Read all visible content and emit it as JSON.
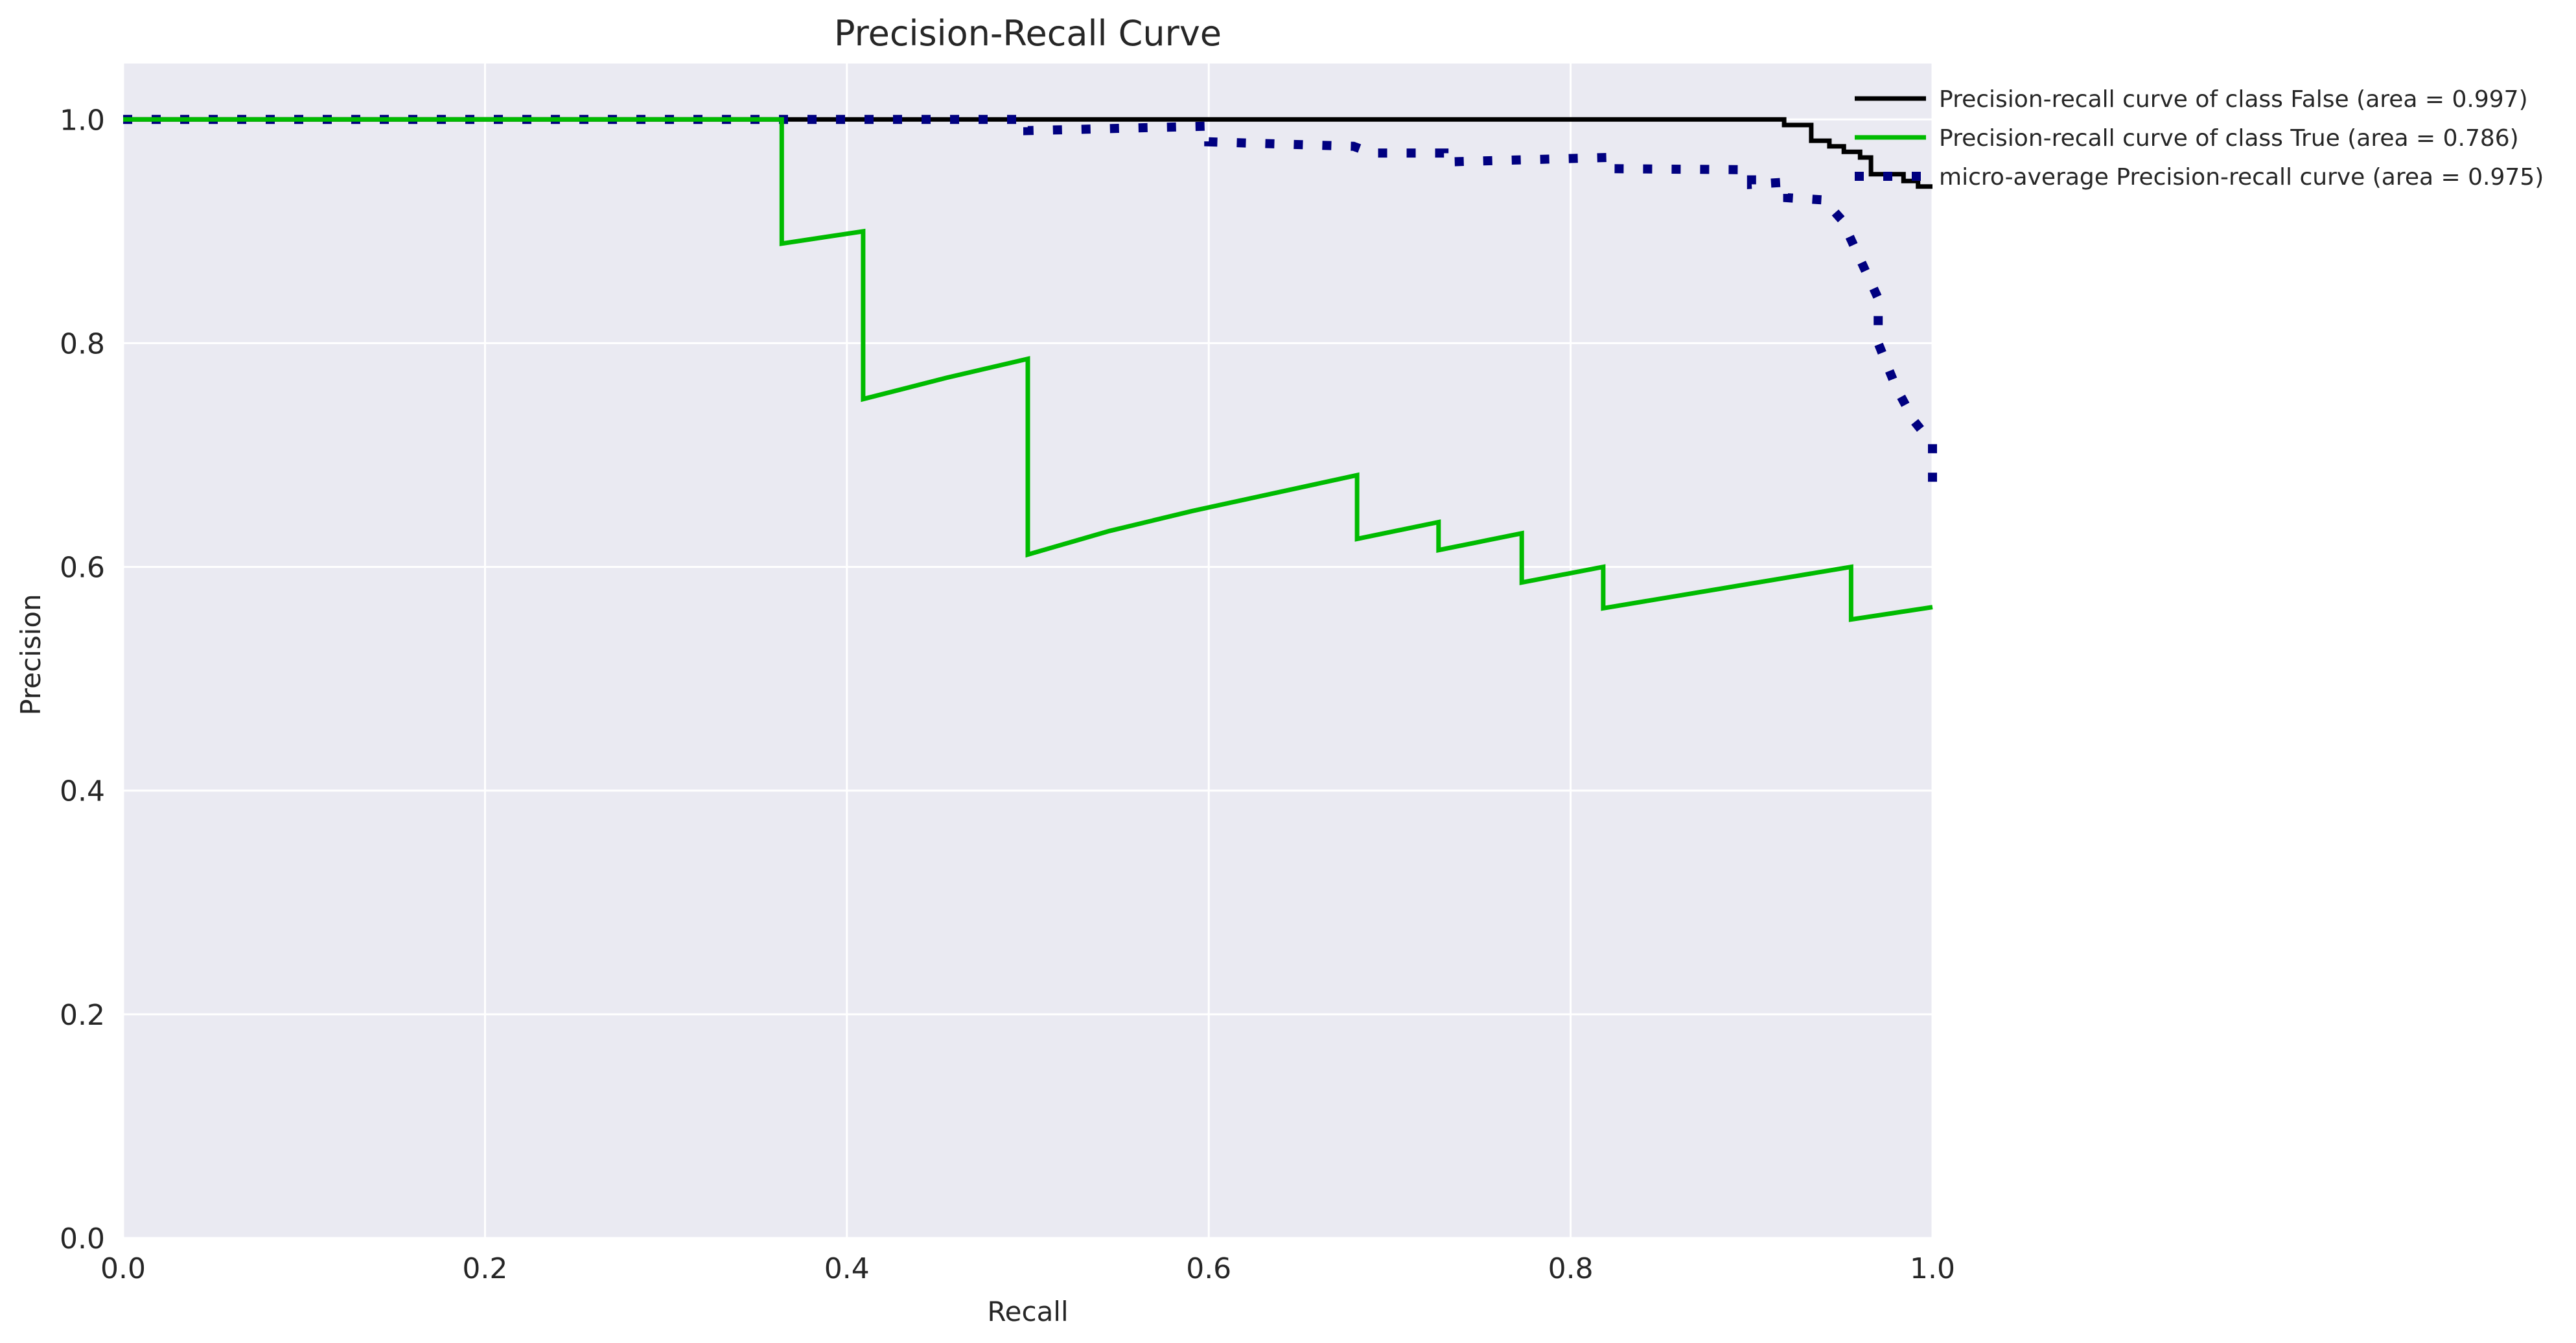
{
  "chart_data": {
    "type": "line",
    "title": "Precision-Recall Curve",
    "xlabel": "Recall",
    "ylabel": "Precision",
    "xlim": [
      0,
      1
    ],
    "ylim": [
      0,
      1.05
    ],
    "xticks": [
      "0.0",
      "0.2",
      "0.4",
      "0.6",
      "0.8",
      "1.0"
    ],
    "yticks": [
      "0.0",
      "0.2",
      "0.4",
      "0.6",
      "0.8",
      "1.0"
    ],
    "grid": true,
    "legend_position": "top-right, outside plot",
    "colors": {
      "background": "#eaeaf2",
      "grid": "#ffffff"
    },
    "series": [
      {
        "name": "Precision-recall curve of class False (area = 0.997)",
        "color": "#000000",
        "style": "solid",
        "points": [
          [
            0,
            1.0
          ],
          [
            0.918,
            1.0
          ],
          [
            0.918,
            0.995
          ],
          [
            0.933,
            0.995
          ],
          [
            0.933,
            0.981
          ],
          [
            0.943,
            0.981
          ],
          [
            0.943,
            0.976
          ],
          [
            0.951,
            0.976
          ],
          [
            0.951,
            0.971
          ],
          [
            0.96,
            0.971
          ],
          [
            0.96,
            0.966
          ],
          [
            0.966,
            0.966
          ],
          [
            0.966,
            0.951
          ],
          [
            0.984,
            0.951
          ],
          [
            0.984,
            0.945
          ],
          [
            0.992,
            0.945
          ],
          [
            0.992,
            0.94
          ],
          [
            1.0,
            0.94
          ]
        ]
      },
      {
        "name": "Precision-recall curve of class True (area = 0.786)",
        "color": "#00bb00",
        "style": "solid",
        "points": [
          [
            0,
            1.0
          ],
          [
            0.364,
            1.0
          ],
          [
            0.364,
            0.889
          ],
          [
            0.409,
            0.9
          ],
          [
            0.409,
            0.75
          ],
          [
            0.455,
            0.769
          ],
          [
            0.5,
            0.786
          ],
          [
            0.5,
            0.611
          ],
          [
            0.545,
            0.632
          ],
          [
            0.591,
            0.65
          ],
          [
            0.682,
            0.682
          ],
          [
            0.682,
            0.625
          ],
          [
            0.727,
            0.64
          ],
          [
            0.727,
            0.615
          ],
          [
            0.773,
            0.63
          ],
          [
            0.773,
            0.586
          ],
          [
            0.818,
            0.6
          ],
          [
            0.818,
            0.563
          ],
          [
            0.955,
            0.6
          ],
          [
            0.955,
            0.553
          ],
          [
            1.0,
            0.564
          ]
        ]
      },
      {
        "name": "micro-average Precision-recall curve (area = 0.975)",
        "color": "#000080",
        "style": "dotted",
        "points": [
          [
            0,
            1.0
          ],
          [
            0.5,
            1.0
          ],
          [
            0.5,
            0.99
          ],
          [
            0.6,
            0.994
          ],
          [
            0.6,
            0.98
          ],
          [
            0.68,
            0.976
          ],
          [
            0.69,
            0.97
          ],
          [
            0.73,
            0.97
          ],
          [
            0.73,
            0.962
          ],
          [
            0.82,
            0.966
          ],
          [
            0.82,
            0.956
          ],
          [
            0.9,
            0.955
          ],
          [
            0.9,
            0.942
          ],
          [
            0.92,
            0.944
          ],
          [
            0.92,
            0.93
          ],
          [
            0.94,
            0.928
          ],
          [
            0.95,
            0.91
          ],
          [
            0.96,
            0.875
          ],
          [
            0.97,
            0.84
          ],
          [
            0.97,
            0.8
          ],
          [
            0.98,
            0.76
          ],
          [
            0.99,
            0.73
          ],
          [
            1.0,
            0.71
          ],
          [
            1.0,
            0.665
          ]
        ]
      }
    ]
  }
}
